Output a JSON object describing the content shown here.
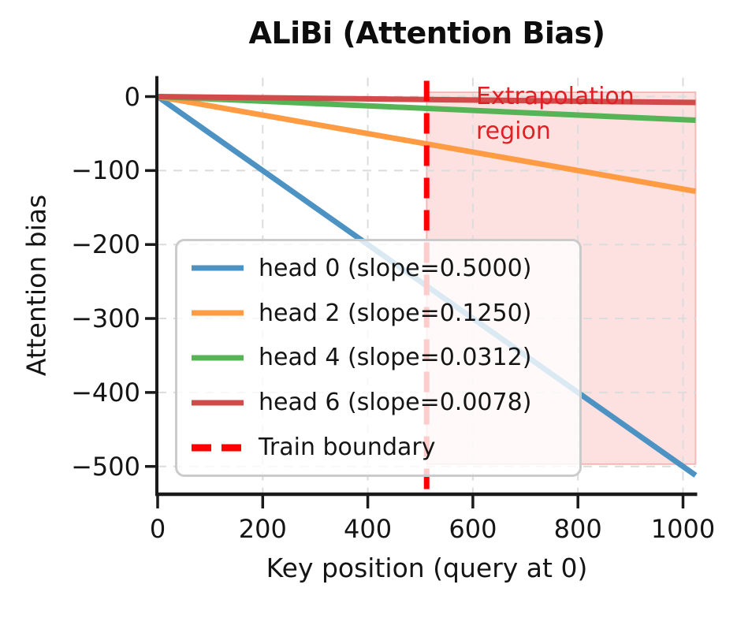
{
  "figure": {
    "background": "#ffffff"
  },
  "chart_data": {
    "type": "line",
    "title": "ALiBi (Attention Bias)",
    "xlabel": "Key position (query at 0)",
    "ylabel": "Attention bias",
    "xlim": [
      0,
      1024
    ],
    "ylim": [
      -537.6,
      25.6
    ],
    "xticks": [
      0,
      200,
      400,
      600,
      800,
      1000
    ],
    "xtick_labels": [
      "0",
      "200",
      "400",
      "600",
      "800",
      "1000"
    ],
    "yticks": [
      0,
      -100,
      -200,
      -300,
      -400,
      -500
    ],
    "ytick_labels": [
      "0",
      "−100",
      "−200",
      "−300",
      "−400",
      "−500"
    ],
    "grid": true,
    "grid_color": "#dcdcdc",
    "series": [
      {
        "name": "head 0 (slope=0.5000)",
        "slope": 0.5,
        "color": "#4C92C3",
        "x": [
          0,
          1024
        ],
        "y": [
          0,
          -512
        ]
      },
      {
        "name": "head 2 (slope=0.1250)",
        "slope": 0.125,
        "color": "#FF9B42",
        "x": [
          0,
          1024
        ],
        "y": [
          0,
          -128
        ]
      },
      {
        "name": "head 4 (slope=0.0312)",
        "slope": 0.0312,
        "color": "#56B356",
        "x": [
          0,
          1024
        ],
        "y": [
          0,
          -31.95
        ]
      },
      {
        "name": "head 6 (slope=0.0078)",
        "slope": 0.0078,
        "color": "#D14B4B",
        "x": [
          0,
          1024
        ],
        "y": [
          0,
          -7.99
        ]
      }
    ],
    "train_boundary": {
      "name": "Train boundary",
      "x": 512,
      "color": "#FF0000"
    },
    "extrapolation_span": {
      "x": [
        512,
        1024
      ],
      "y": [
        -497,
        6
      ],
      "fill": "rgba(240,60,60,0.16)",
      "edge": "rgba(220,50,50,0.28)"
    },
    "annotation": {
      "text": "Extrapolation\nregion",
      "color": "#DF2126"
    },
    "legend_location": "center left"
  },
  "legend": {
    "items": [
      {
        "label": "head 0 (slope=0.5000)",
        "color": "#4C92C3",
        "dash": false
      },
      {
        "label": "head 2 (slope=0.1250)",
        "color": "#FF9B42",
        "dash": false
      },
      {
        "label": "head 4 (slope=0.0312)",
        "color": "#56B356",
        "dash": false
      },
      {
        "label": "head 6 (slope=0.0078)",
        "color": "#D14B4B",
        "dash": false
      },
      {
        "label": "Train boundary",
        "color": "#FF0000",
        "dash": true
      }
    ]
  }
}
